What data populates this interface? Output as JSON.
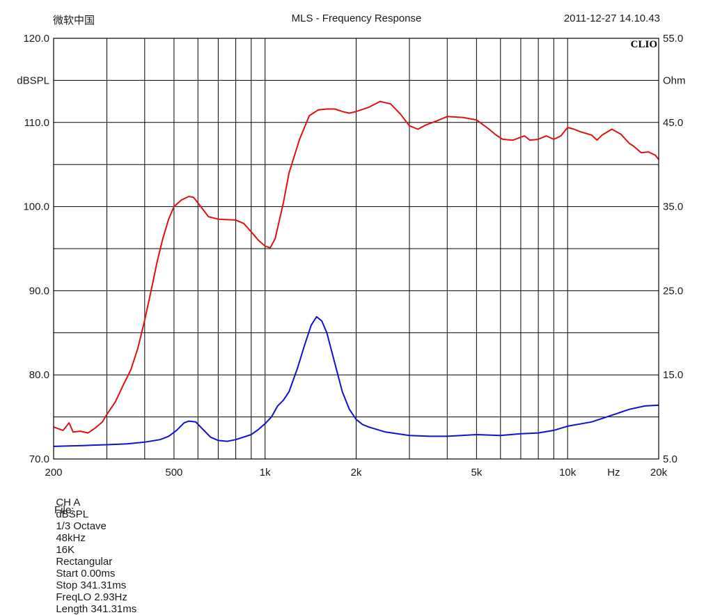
{
  "header": {
    "left": "微软中国",
    "title": "MLS - Frequency Response",
    "datetime": "2011-12-27 14.10.43"
  },
  "brand": "CLIO",
  "chart_data": {
    "type": "line",
    "title": "MLS - Frequency Response",
    "x_scale": "log",
    "xlim": [
      200,
      20000
    ],
    "x_tick_labels": [
      {
        "value": 200,
        "label": "200"
      },
      {
        "value": 500,
        "label": "500"
      },
      {
        "value": 1000,
        "label": "1k"
      },
      {
        "value": 2000,
        "label": "2k"
      },
      {
        "value": 5000,
        "label": "5k"
      },
      {
        "value": 10000,
        "label": "10k"
      },
      {
        "value": 20000,
        "label": "20k"
      }
    ],
    "x_unit": "Hz",
    "y_left": {
      "unit": "dBSPL",
      "range": [
        70,
        120
      ],
      "ticks": [
        {
          "value": 120,
          "label": "120.0"
        },
        {
          "value": 110,
          "label": "110.0"
        },
        {
          "value": 100,
          "label": "100.0"
        },
        {
          "value": 90,
          "label": "90.0"
        },
        {
          "value": 80,
          "label": "80.0"
        },
        {
          "value": 70,
          "label": "70.0"
        }
      ]
    },
    "y_right": {
      "unit": "Ohm",
      "range": [
        5,
        55
      ],
      "ticks": [
        {
          "value": 55,
          "label": "55.0"
        },
        {
          "value": 45,
          "label": "45.0"
        },
        {
          "value": 35,
          "label": "35.0"
        },
        {
          "value": 25,
          "label": "25.0"
        },
        {
          "value": 15,
          "label": "15.0"
        },
        {
          "value": 5,
          "label": "5.0"
        }
      ]
    },
    "grid": true,
    "series": [
      {
        "color": "#e01010",
        "axis": "left",
        "points": [
          [
            200,
            73.8
          ],
          [
            215,
            73.4
          ],
          [
            225,
            74.3
          ],
          [
            232,
            73.2
          ],
          [
            245,
            73.3
          ],
          [
            260,
            73.1
          ],
          [
            275,
            73.7
          ],
          [
            290,
            74.4
          ],
          [
            300,
            75.3
          ],
          [
            320,
            76.8
          ],
          [
            340,
            78.8
          ],
          [
            360,
            80.6
          ],
          [
            380,
            83.2
          ],
          [
            400,
            86.5
          ],
          [
            420,
            90.0
          ],
          [
            440,
            93.5
          ],
          [
            460,
            96.3
          ],
          [
            480,
            98.5
          ],
          [
            500,
            100.0
          ],
          [
            530,
            100.8
          ],
          [
            560,
            101.2
          ],
          [
            580,
            101.1
          ],
          [
            610,
            100.1
          ],
          [
            650,
            98.8
          ],
          [
            700,
            98.5
          ],
          [
            800,
            98.4
          ],
          [
            850,
            98.0
          ],
          [
            900,
            97.0
          ],
          [
            950,
            96.0
          ],
          [
            1000,
            95.3
          ],
          [
            1040,
            95.1
          ],
          [
            1080,
            96.2
          ],
          [
            1150,
            100.5
          ],
          [
            1200,
            104.0
          ],
          [
            1300,
            108.0
          ],
          [
            1400,
            110.8
          ],
          [
            1500,
            111.5
          ],
          [
            1600,
            111.6
          ],
          [
            1700,
            111.6
          ],
          [
            1800,
            111.3
          ],
          [
            1900,
            111.1
          ],
          [
            2000,
            111.3
          ],
          [
            2200,
            111.8
          ],
          [
            2400,
            112.5
          ],
          [
            2600,
            112.2
          ],
          [
            2800,
            111.0
          ],
          [
            3000,
            109.6
          ],
          [
            3200,
            109.2
          ],
          [
            3400,
            109.7
          ],
          [
            3700,
            110.2
          ],
          [
            4000,
            110.7
          ],
          [
            4500,
            110.6
          ],
          [
            5000,
            110.3
          ],
          [
            5500,
            109.2
          ],
          [
            5800,
            108.5
          ],
          [
            6100,
            108.0
          ],
          [
            6600,
            107.9
          ],
          [
            7200,
            108.4
          ],
          [
            7500,
            107.9
          ],
          [
            8000,
            108.0
          ],
          [
            8500,
            108.4
          ],
          [
            9000,
            108.0
          ],
          [
            9500,
            108.4
          ],
          [
            10000,
            109.4
          ],
          [
            10500,
            109.2
          ],
          [
            11000,
            108.9
          ],
          [
            11500,
            108.7
          ],
          [
            12000,
            108.5
          ],
          [
            12500,
            107.9
          ],
          [
            13000,
            108.5
          ],
          [
            14000,
            109.2
          ],
          [
            15000,
            108.6
          ],
          [
            16000,
            107.5
          ],
          [
            16500,
            107.2
          ],
          [
            17000,
            106.8
          ],
          [
            17500,
            106.4
          ],
          [
            18500,
            106.5
          ],
          [
            19500,
            106.1
          ],
          [
            20000,
            105.6
          ]
        ]
      },
      {
        "color": "#1010d0",
        "axis": "right",
        "points": [
          [
            200,
            6.5
          ],
          [
            250,
            6.6
          ],
          [
            300,
            6.7
          ],
          [
            350,
            6.8
          ],
          [
            400,
            7.0
          ],
          [
            450,
            7.3
          ],
          [
            480,
            7.7
          ],
          [
            510,
            8.4
          ],
          [
            540,
            9.3
          ],
          [
            560,
            9.5
          ],
          [
            590,
            9.4
          ],
          [
            620,
            8.6
          ],
          [
            660,
            7.6
          ],
          [
            700,
            7.2
          ],
          [
            750,
            7.1
          ],
          [
            800,
            7.3
          ],
          [
            900,
            7.9
          ],
          [
            950,
            8.5
          ],
          [
            1000,
            9.2
          ],
          [
            1050,
            10.0
          ],
          [
            1100,
            11.3
          ],
          [
            1150,
            12.0
          ],
          [
            1200,
            13.0
          ],
          [
            1280,
            15.8
          ],
          [
            1350,
            18.5
          ],
          [
            1420,
            20.9
          ],
          [
            1480,
            21.9
          ],
          [
            1540,
            21.4
          ],
          [
            1600,
            20.0
          ],
          [
            1700,
            16.4
          ],
          [
            1800,
            13.0
          ],
          [
            1900,
            10.9
          ],
          [
            2000,
            9.7
          ],
          [
            2100,
            9.1
          ],
          [
            2200,
            8.8
          ],
          [
            2500,
            8.2
          ],
          [
            3000,
            7.8
          ],
          [
            3500,
            7.7
          ],
          [
            4000,
            7.7
          ],
          [
            5000,
            7.9
          ],
          [
            6000,
            7.8
          ],
          [
            7000,
            8.0
          ],
          [
            8000,
            8.1
          ],
          [
            9000,
            8.4
          ],
          [
            10000,
            8.9
          ],
          [
            12000,
            9.4
          ],
          [
            14000,
            10.2
          ],
          [
            16000,
            10.9
          ],
          [
            18000,
            11.3
          ],
          [
            20000,
            11.4
          ]
        ]
      }
    ]
  },
  "footer": {
    "items": [
      "CH A",
      "dBSPL",
      "1/3 Octave",
      "48kHz",
      "16K",
      "Rectangular",
      "Start 0.00ms",
      "Stop 341.31ms",
      "FreqLO 2.93Hz",
      "Length 341.31ms"
    ],
    "file_label": "File:"
  }
}
